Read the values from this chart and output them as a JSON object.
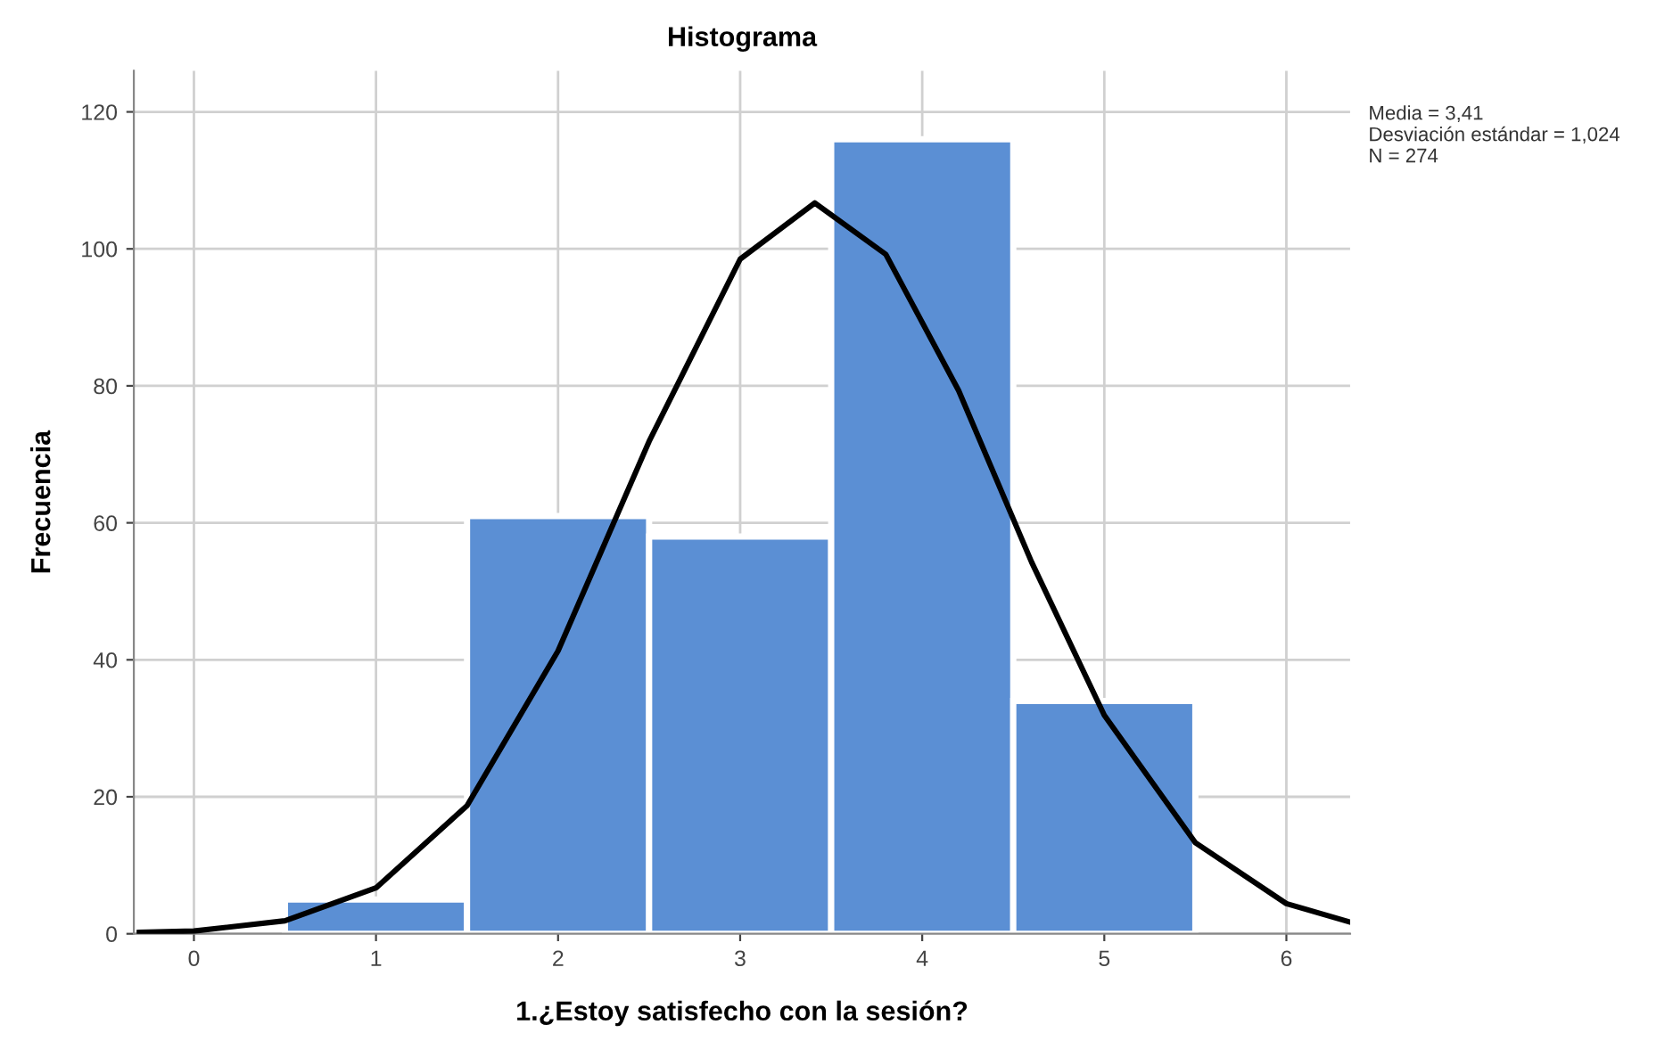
{
  "chart_data": {
    "type": "histogram",
    "title": "Histograma",
    "xlabel": "1.¿Estoy satisfecho con la sesión?",
    "ylabel": "Frecuencia",
    "bins": [
      0.5,
      1.5,
      2.5,
      3.5,
      4.5,
      5.5
    ],
    "values": [
      5,
      61,
      58,
      116,
      34
    ],
    "color": "#5b8fd4",
    "series": [
      {
        "type": "line",
        "color": "#000000",
        "x": [
          -0.3,
          0,
          0.5,
          1,
          1.5,
          2,
          2.5,
          3,
          3.41,
          3.8,
          4.2,
          4.6,
          5,
          5.5,
          6,
          6.35
        ],
        "values": [
          0.2,
          0.4,
          1.9,
          6.7,
          18.7,
          41.3,
          71.9,
          98.5,
          106.7,
          99.2,
          79.3,
          54.3,
          31.9,
          13.3,
          4.4,
          1.7
        ]
      }
    ],
    "xlim": [
      -0.33,
      6.35
    ],
    "xticks": [
      0,
      1,
      2,
      3,
      4,
      5,
      6
    ],
    "ylim": [
      0,
      126
    ],
    "yticks": [
      0,
      20,
      40,
      60,
      80,
      100,
      120
    ],
    "grid": true,
    "marker": "none",
    "annotations": [
      "Media = 3,41",
      "Desviación estándar = 1,024",
      "N = 274"
    ]
  }
}
